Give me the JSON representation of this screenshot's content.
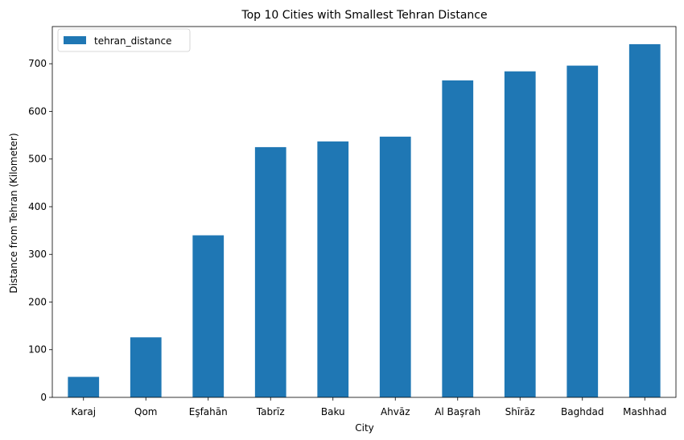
{
  "chart_data": {
    "type": "bar",
    "title": "Top 10 Cities with Smallest Tehran Distance",
    "xlabel": "City",
    "ylabel": "Distance from Tehran (Kilometer)",
    "categories": [
      "Karaj",
      "Qom",
      "Eşfahān",
      "Tabrīz",
      "Baku",
      "Ahvāz",
      "Al Başrah",
      "Shīrāz",
      "Baghdad",
      "Mashhad"
    ],
    "series": [
      {
        "name": "tehran_distance",
        "color": "#1f77b4",
        "values": [
          43,
          126,
          340,
          525,
          537,
          547,
          665,
          684,
          696,
          741
        ]
      }
    ],
    "ylim": [
      0,
      778
    ],
    "yticks": [
      0,
      100,
      200,
      300,
      400,
      500,
      600,
      700
    ],
    "grid": false,
    "legend": "top-left"
  }
}
